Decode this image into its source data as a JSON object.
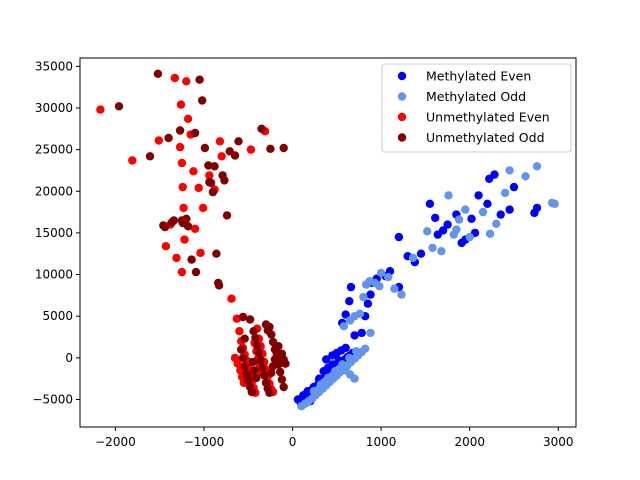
{
  "chart_data": {
    "type": "scatter",
    "title": "",
    "xlabel": "",
    "ylabel": "",
    "xlim": [
      -2400,
      3200
    ],
    "ylim": [
      -8300,
      36000
    ],
    "xticks": [
      -2000,
      -1000,
      0,
      1000,
      2000,
      3000
    ],
    "yticks": [
      -5000,
      0,
      5000,
      10000,
      15000,
      20000,
      25000,
      30000,
      35000
    ],
    "grid": false,
    "legend_position": "top-right",
    "series": [
      {
        "name": "Methylated Even",
        "color": "#0000ff",
        "points": [
          [
            60,
            -5000
          ],
          [
            90,
            -5300
          ],
          [
            120,
            -4800
          ],
          [
            150,
            -4400
          ],
          [
            180,
            -4200
          ],
          [
            200,
            -4600
          ],
          [
            220,
            -3800
          ],
          [
            250,
            -3600
          ],
          [
            280,
            -3300
          ],
          [
            300,
            -3000
          ],
          [
            320,
            -2800
          ],
          [
            350,
            -2500
          ],
          [
            380,
            -2300
          ],
          [
            400,
            -2000
          ],
          [
            420,
            -1800
          ],
          [
            450,
            -1500
          ],
          [
            480,
            -1300
          ],
          [
            500,
            -1000
          ],
          [
            530,
            -700
          ],
          [
            560,
            -500
          ],
          [
            590,
            -200
          ],
          [
            620,
            100
          ],
          [
            650,
            300
          ],
          [
            680,
            600
          ],
          [
            380,
            -200
          ],
          [
            450,
            300
          ],
          [
            500,
            600
          ],
          [
            550,
            900
          ],
          [
            600,
            1200
          ],
          [
            200,
            -5200
          ],
          [
            150,
            -5400
          ],
          [
            100,
            -5600
          ],
          [
            120,
            -4500
          ],
          [
            170,
            -4000
          ],
          [
            240,
            -3500
          ],
          [
            300,
            -2500
          ],
          [
            350,
            -1600
          ],
          [
            400,
            -1200
          ],
          [
            450,
            -800
          ],
          [
            520,
            -300
          ],
          [
            560,
            4200
          ],
          [
            600,
            5200
          ],
          [
            640,
            6800
          ],
          [
            660,
            8500
          ],
          [
            700,
            2700
          ],
          [
            780,
            3000
          ],
          [
            820,
            5000
          ],
          [
            850,
            6500
          ],
          [
            880,
            7600
          ],
          [
            900,
            9000
          ],
          [
            950,
            9500
          ],
          [
            1050,
            9800
          ],
          [
            1200,
            14500
          ],
          [
            1300,
            12200
          ],
          [
            1380,
            11500
          ],
          [
            1450,
            12500
          ],
          [
            1550,
            18500
          ],
          [
            1610,
            16800
          ],
          [
            1640,
            14800
          ],
          [
            1700,
            15300
          ],
          [
            1750,
            16000
          ],
          [
            1850,
            17200
          ],
          [
            1910,
            13800
          ],
          [
            1950,
            14200
          ],
          [
            2020,
            16700
          ],
          [
            2060,
            15000
          ],
          [
            2100,
            19500
          ],
          [
            2200,
            18500
          ],
          [
            2220,
            21500
          ],
          [
            2280,
            22000
          ],
          [
            2350,
            17200
          ],
          [
            2450,
            17800
          ],
          [
            2500,
            20500
          ],
          [
            2730,
            17400
          ],
          [
            2760,
            18000
          ],
          [
            1200,
            8500
          ],
          [
            1100,
            10400
          ]
        ]
      },
      {
        "name": "Methylated Odd",
        "color": "#6495ed",
        "points": [
          [
            100,
            -5800
          ],
          [
            140,
            -5500
          ],
          [
            180,
            -5200
          ],
          [
            220,
            -4900
          ],
          [
            260,
            -4500
          ],
          [
            300,
            -4100
          ],
          [
            340,
            -3700
          ],
          [
            380,
            -3300
          ],
          [
            420,
            -2900
          ],
          [
            460,
            -2500
          ],
          [
            500,
            -2100
          ],
          [
            540,
            -1700
          ],
          [
            580,
            -1300
          ],
          [
            620,
            -900
          ],
          [
            660,
            -500
          ],
          [
            700,
            -100
          ],
          [
            740,
            300
          ],
          [
            780,
            700
          ],
          [
            820,
            1100
          ],
          [
            240,
            -4000
          ],
          [
            320,
            -3200
          ],
          [
            400,
            -2400
          ],
          [
            480,
            -1600
          ],
          [
            560,
            -800
          ],
          [
            640,
            0
          ],
          [
            720,
            800
          ],
          [
            300,
            -3700
          ],
          [
            360,
            -2900
          ],
          [
            440,
            -2200
          ],
          [
            520,
            -1400
          ],
          [
            580,
            3800
          ],
          [
            650,
            4500
          ],
          [
            700,
            5000
          ],
          [
            760,
            5300
          ],
          [
            800,
            7300
          ],
          [
            830,
            8800
          ],
          [
            870,
            9200
          ],
          [
            930,
            9000
          ],
          [
            980,
            8600
          ],
          [
            1000,
            10200
          ],
          [
            1080,
            9700
          ],
          [
            1150,
            8300
          ],
          [
            1230,
            7600
          ],
          [
            1360,
            12000
          ],
          [
            1520,
            15200
          ],
          [
            1580,
            13200
          ],
          [
            1680,
            12800
          ],
          [
            1760,
            19500
          ],
          [
            1820,
            14800
          ],
          [
            1850,
            15400
          ],
          [
            1880,
            16600
          ],
          [
            1950,
            17800
          ],
          [
            2000,
            14500
          ],
          [
            2150,
            17500
          ],
          [
            2230,
            14900
          ],
          [
            2300,
            16100
          ],
          [
            2400,
            19800
          ],
          [
            2450,
            22500
          ],
          [
            2630,
            21800
          ],
          [
            2760,
            23000
          ],
          [
            2930,
            18600
          ],
          [
            2960,
            18500
          ],
          [
            880,
            3000
          ],
          [
            600,
            -1500
          ],
          [
            650,
            -2000
          ],
          [
            700,
            -2500
          ]
        ]
      },
      {
        "name": "Unmethylated Even",
        "color": "#ff0000",
        "points": [
          [
            -2170,
            29800
          ],
          [
            -1810,
            23700
          ],
          [
            -1510,
            26100
          ],
          [
            -1380,
            16000
          ],
          [
            -1430,
            13400
          ],
          [
            -1330,
            33600
          ],
          [
            -1260,
            30400
          ],
          [
            -1270,
            25300
          ],
          [
            -1250,
            23400
          ],
          [
            -1240,
            20500
          ],
          [
            -1230,
            18000
          ],
          [
            -1220,
            14200
          ],
          [
            -1200,
            33200
          ],
          [
            -1180,
            28700
          ],
          [
            -1150,
            26800
          ],
          [
            -1120,
            22400
          ],
          [
            -1100,
            15500
          ],
          [
            -1060,
            20400
          ],
          [
            -1040,
            12600
          ],
          [
            -1010,
            18000
          ],
          [
            -940,
            21900
          ],
          [
            -880,
            20200
          ],
          [
            -820,
            26000
          ],
          [
            -800,
            24200
          ],
          [
            -690,
            7100
          ],
          [
            -630,
            4700
          ],
          [
            -470,
            25000
          ],
          [
            -310,
            27200
          ],
          [
            -1310,
            12000
          ],
          [
            -1250,
            10300
          ],
          [
            -600,
            3200
          ],
          [
            -580,
            2000
          ],
          [
            -560,
            1200
          ],
          [
            -540,
            400
          ],
          [
            -520,
            -300
          ],
          [
            -500,
            -1200
          ],
          [
            -480,
            -2000
          ],
          [
            -460,
            -2900
          ],
          [
            -440,
            -3600
          ],
          [
            -420,
            -4200
          ],
          [
            -400,
            3500
          ],
          [
            -380,
            2300
          ],
          [
            -360,
            1400
          ],
          [
            -340,
            500
          ],
          [
            -320,
            -500
          ],
          [
            -300,
            -1400
          ],
          [
            -280,
            -2200
          ],
          [
            -260,
            -3100
          ],
          [
            -240,
            -3800
          ],
          [
            -220,
            -4100
          ],
          [
            -650,
            0
          ],
          [
            -620,
            -700
          ],
          [
            -590,
            -1500
          ],
          [
            -570,
            -2300
          ],
          [
            -550,
            -3000
          ],
          [
            -430,
            1800
          ],
          [
            -410,
            800
          ],
          [
            -390,
            -100
          ],
          [
            -370,
            -900
          ],
          [
            -350,
            -1700
          ]
        ]
      },
      {
        "name": "Unmethylated Odd",
        "color": "#800000",
        "points": [
          [
            -1960,
            30200
          ],
          [
            -1610,
            24200
          ],
          [
            -1520,
            34100
          ],
          [
            -1460,
            15900
          ],
          [
            -1440,
            15700
          ],
          [
            -1400,
            26400
          ],
          [
            -1360,
            16300
          ],
          [
            -1340,
            16500
          ],
          [
            -1270,
            27300
          ],
          [
            -1250,
            16500
          ],
          [
            -1240,
            16200
          ],
          [
            -1200,
            16700
          ],
          [
            -1180,
            15800
          ],
          [
            -1140,
            11800
          ],
          [
            -1090,
            10300
          ],
          [
            -1100,
            27000
          ],
          [
            -1050,
            33400
          ],
          [
            -1020,
            30900
          ],
          [
            -990,
            25200
          ],
          [
            -950,
            23100
          ],
          [
            -940,
            21100
          ],
          [
            -920,
            21000
          ],
          [
            -900,
            19900
          ],
          [
            -880,
            23000
          ],
          [
            -860,
            12500
          ],
          [
            -840,
            9000
          ],
          [
            -830,
            8700
          ],
          [
            -790,
            21900
          ],
          [
            -770,
            21300
          ],
          [
            -740,
            17100
          ],
          [
            -710,
            24800
          ],
          [
            -650,
            24300
          ],
          [
            -610,
            26000
          ],
          [
            -560,
            4900
          ],
          [
            -540,
            2300
          ],
          [
            -510,
            -2100
          ],
          [
            -480,
            4600
          ],
          [
            -350,
            27500
          ],
          [
            -250,
            25100
          ],
          [
            -100,
            25200
          ],
          [
            -580,
            1000
          ],
          [
            -560,
            0
          ],
          [
            -540,
            -1000
          ],
          [
            -520,
            -1900
          ],
          [
            -500,
            -2700
          ],
          [
            -480,
            -3500
          ],
          [
            -460,
            -4100
          ],
          [
            -440,
            3200
          ],
          [
            -420,
            2400
          ],
          [
            -400,
            1500
          ],
          [
            -380,
            600
          ],
          [
            -360,
            -300
          ],
          [
            -340,
            -1200
          ],
          [
            -320,
            -2100
          ],
          [
            -300,
            -3000
          ],
          [
            -280,
            -3700
          ],
          [
            -260,
            -4200
          ],
          [
            -240,
            2800
          ],
          [
            -220,
            1900
          ],
          [
            -200,
            1000
          ],
          [
            -180,
            100
          ],
          [
            -160,
            -800
          ],
          [
            -140,
            -1700
          ],
          [
            -120,
            -2600
          ],
          [
            -100,
            -3500
          ],
          [
            -300,
            4000
          ],
          [
            -280,
            3300
          ],
          [
            -260,
            3700
          ],
          [
            -240,
            -1800
          ],
          [
            -220,
            -1000
          ],
          [
            -200,
            -200
          ],
          [
            -180,
            600
          ],
          [
            -160,
            1400
          ],
          [
            -140,
            -600
          ],
          [
            -120,
            500
          ],
          [
            -100,
            -200
          ],
          [
            -80,
            -700
          ],
          [
            -450,
            -500
          ],
          [
            -430,
            -1500
          ],
          [
            -410,
            -2400
          ]
        ]
      }
    ]
  }
}
